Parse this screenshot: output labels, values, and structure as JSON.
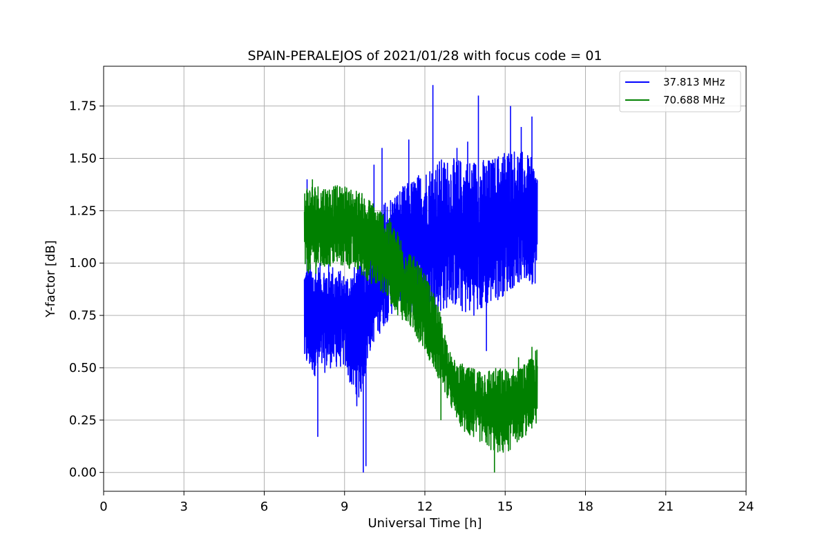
{
  "chart_data": {
    "type": "line",
    "title": "SPAIN-PERALEJOS of 2021/01/28 with focus code = 01",
    "xlabel": "Universal Time [h]",
    "ylabel": "Y-factor [dB]",
    "xlim": [
      0,
      24
    ],
    "ylim": [
      -0.09,
      1.94
    ],
    "xticks": [
      0,
      3,
      6,
      9,
      12,
      15,
      18,
      21,
      24
    ],
    "yticks": [
      0.0,
      0.25,
      0.5,
      0.75,
      1.0,
      1.25,
      1.5,
      1.75
    ],
    "xtick_labels": [
      "0",
      "3",
      "6",
      "9",
      "12",
      "15",
      "18",
      "21",
      "24"
    ],
    "ytick_labels": [
      "0.00",
      "0.25",
      "0.50",
      "0.75",
      "1.00",
      "1.25",
      "1.50",
      "1.75"
    ],
    "grid": true,
    "legend": "top-right",
    "series": [
      {
        "name": "37.813 MHz",
        "color": "#0000ff",
        "x": [
          7.5,
          8.0,
          8.5,
          9.0,
          9.5,
          10.0,
          10.5,
          11.0,
          11.5,
          12.0,
          12.5,
          13.0,
          13.5,
          14.0,
          14.5,
          15.0,
          15.5,
          16.0,
          16.2
        ],
        "y_low": [
          0.5,
          0.45,
          0.5,
          0.5,
          0.3,
          0.6,
          0.7,
          0.8,
          0.75,
          0.8,
          0.75,
          0.8,
          0.75,
          0.75,
          0.8,
          0.85,
          0.9,
          0.9,
          0.9
        ],
        "y_high": [
          1.0,
          1.0,
          1.0,
          0.95,
          1.0,
          1.1,
          1.3,
          1.35,
          1.4,
          1.45,
          1.5,
          1.5,
          1.5,
          1.5,
          1.5,
          1.55,
          1.55,
          1.5,
          1.45
        ],
        "spikes": [
          {
            "x": 7.6,
            "y": 1.4
          },
          {
            "x": 8.0,
            "y": 0.17
          },
          {
            "x": 9.7,
            "y": 0.0
          },
          {
            "x": 9.8,
            "y": 0.03
          },
          {
            "x": 10.1,
            "y": 1.47
          },
          {
            "x": 10.4,
            "y": 1.55
          },
          {
            "x": 11.4,
            "y": 1.59
          },
          {
            "x": 12.3,
            "y": 1.85
          },
          {
            "x": 13.2,
            "y": 1.55
          },
          {
            "x": 13.6,
            "y": 1.58
          },
          {
            "x": 14.0,
            "y": 1.8
          },
          {
            "x": 14.3,
            "y": 0.58
          },
          {
            "x": 15.2,
            "y": 1.75
          },
          {
            "x": 15.6,
            "y": 1.65
          },
          {
            "x": 16.0,
            "y": 1.7
          }
        ]
      },
      {
        "name": "70.688 MHz",
        "color": "#008000",
        "x": [
          7.5,
          8.0,
          8.5,
          9.0,
          9.5,
          10.0,
          10.5,
          11.0,
          11.5,
          12.0,
          12.5,
          13.0,
          13.5,
          14.0,
          14.5,
          15.0,
          15.5,
          16.0,
          16.2
        ],
        "y_low": [
          0.95,
          0.95,
          0.98,
          0.98,
          0.95,
          0.9,
          0.85,
          0.75,
          0.68,
          0.58,
          0.45,
          0.3,
          0.18,
          0.15,
          0.1,
          0.08,
          0.15,
          0.2,
          0.2
        ],
        "y_high": [
          1.38,
          1.38,
          1.37,
          1.37,
          1.35,
          1.3,
          1.25,
          1.15,
          1.05,
          0.95,
          0.8,
          0.55,
          0.5,
          0.5,
          0.5,
          0.5,
          0.5,
          0.55,
          0.6
        ],
        "spikes": [
          {
            "x": 7.8,
            "y": 1.4
          },
          {
            "x": 12.6,
            "y": 0.25
          },
          {
            "x": 13.4,
            "y": 0.52
          },
          {
            "x": 14.6,
            "y": 0.0
          },
          {
            "x": 15.5,
            "y": 0.55
          },
          {
            "x": 16.0,
            "y": 0.6
          }
        ]
      }
    ]
  }
}
